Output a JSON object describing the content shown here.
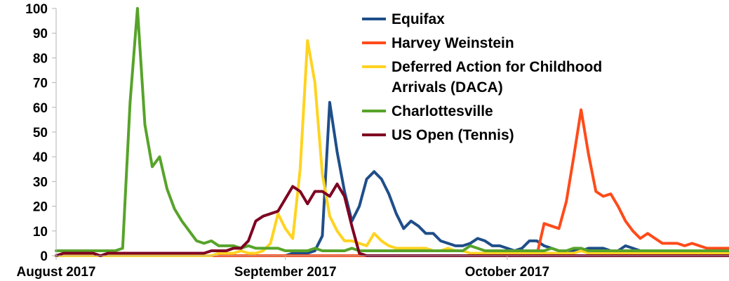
{
  "chart_data": {
    "type": "line",
    "title": "",
    "xlabel": "",
    "ylabel": "",
    "ylim": [
      0,
      100
    ],
    "yticks": [
      0,
      10,
      20,
      30,
      40,
      50,
      60,
      70,
      80,
      90,
      100
    ],
    "x_range": [
      "2017-08-01",
      "2017-10-31"
    ],
    "x_tick_labels": [
      {
        "date": "2017-08-01",
        "label": "August 2017"
      },
      {
        "date": "2017-09-01",
        "label": "September 2017"
      },
      {
        "date": "2017-10-01",
        "label": "October 2017"
      }
    ],
    "grid": false,
    "legend_position": "top-center",
    "series": [
      {
        "name": "Equifax",
        "color": "#1f4e89",
        "points": [
          [
            "2017-08-01",
            0
          ],
          [
            "2017-09-01",
            0
          ],
          [
            "2017-09-02",
            1
          ],
          [
            "2017-09-04",
            1
          ],
          [
            "2017-09-05",
            2
          ],
          [
            "2017-09-06",
            8
          ],
          [
            "2017-09-07",
            62
          ],
          [
            "2017-09-08",
            42
          ],
          [
            "2017-09-09",
            26
          ],
          [
            "2017-09-10",
            14
          ],
          [
            "2017-09-11",
            20
          ],
          [
            "2017-09-12",
            31
          ],
          [
            "2017-09-13",
            34
          ],
          [
            "2017-09-14",
            31
          ],
          [
            "2017-09-15",
            25
          ],
          [
            "2017-09-16",
            17
          ],
          [
            "2017-09-17",
            11
          ],
          [
            "2017-09-18",
            14
          ],
          [
            "2017-09-19",
            12
          ],
          [
            "2017-09-20",
            9
          ],
          [
            "2017-09-21",
            9
          ],
          [
            "2017-09-22",
            6
          ],
          [
            "2017-09-23",
            5
          ],
          [
            "2017-09-24",
            4
          ],
          [
            "2017-09-25",
            4
          ],
          [
            "2017-09-26",
            5
          ],
          [
            "2017-09-27",
            7
          ],
          [
            "2017-09-28",
            6
          ],
          [
            "2017-09-29",
            4
          ],
          [
            "2017-09-30",
            4
          ],
          [
            "2017-10-01",
            3
          ],
          [
            "2017-10-02",
            2
          ],
          [
            "2017-10-03",
            3
          ],
          [
            "2017-10-04",
            6
          ],
          [
            "2017-10-05",
            6
          ],
          [
            "2017-10-06",
            4
          ],
          [
            "2017-10-07",
            3
          ],
          [
            "2017-10-08",
            2
          ],
          [
            "2017-10-09",
            2
          ],
          [
            "2017-10-10",
            2
          ],
          [
            "2017-10-11",
            2
          ],
          [
            "2017-10-12",
            3
          ],
          [
            "2017-10-13",
            3
          ],
          [
            "2017-10-14",
            3
          ],
          [
            "2017-10-15",
            2
          ],
          [
            "2017-10-16",
            2
          ],
          [
            "2017-10-17",
            4
          ],
          [
            "2017-10-18",
            3
          ],
          [
            "2017-10-19",
            2
          ],
          [
            "2017-10-20",
            2
          ],
          [
            "2017-10-31",
            2
          ]
        ]
      },
      {
        "name": "Harvey Weinstein",
        "color": "#ff4b1a",
        "points": [
          [
            "2017-08-01",
            0
          ],
          [
            "2017-10-03",
            0
          ],
          [
            "2017-10-05",
            0
          ],
          [
            "2017-10-06",
            13
          ],
          [
            "2017-10-07",
            12
          ],
          [
            "2017-10-08",
            11
          ],
          [
            "2017-10-09",
            22
          ],
          [
            "2017-10-10",
            40
          ],
          [
            "2017-10-11",
            59
          ],
          [
            "2017-10-12",
            41
          ],
          [
            "2017-10-13",
            26
          ],
          [
            "2017-10-14",
            24
          ],
          [
            "2017-10-15",
            25
          ],
          [
            "2017-10-16",
            20
          ],
          [
            "2017-10-17",
            14
          ],
          [
            "2017-10-18",
            10
          ],
          [
            "2017-10-19",
            7
          ],
          [
            "2017-10-20",
            9
          ],
          [
            "2017-10-21",
            7
          ],
          [
            "2017-10-22",
            5
          ],
          [
            "2017-10-23",
            5
          ],
          [
            "2017-10-24",
            5
          ],
          [
            "2017-10-25",
            4
          ],
          [
            "2017-10-26",
            5
          ],
          [
            "2017-10-27",
            4
          ],
          [
            "2017-10-28",
            3
          ],
          [
            "2017-10-29",
            3
          ],
          [
            "2017-10-30",
            3
          ],
          [
            "2017-10-31",
            3
          ]
        ]
      },
      {
        "name": "Deferred Action for Childhood Arrivals (DACA)",
        "color": "#ffd320",
        "points": [
          [
            "2017-08-01",
            0
          ],
          [
            "2017-08-22",
            0
          ],
          [
            "2017-08-23",
            1
          ],
          [
            "2017-08-25",
            1
          ],
          [
            "2017-08-26",
            2
          ],
          [
            "2017-08-27",
            1
          ],
          [
            "2017-08-28",
            1
          ],
          [
            "2017-08-29",
            2
          ],
          [
            "2017-08-30",
            5
          ],
          [
            "2017-08-31",
            17
          ],
          [
            "2017-09-01",
            11
          ],
          [
            "2017-09-02",
            7
          ],
          [
            "2017-09-03",
            35
          ],
          [
            "2017-09-04",
            87
          ],
          [
            "2017-09-05",
            70
          ],
          [
            "2017-09-06",
            33
          ],
          [
            "2017-09-07",
            16
          ],
          [
            "2017-09-08",
            10
          ],
          [
            "2017-09-09",
            6
          ],
          [
            "2017-09-10",
            6
          ],
          [
            "2017-09-11",
            5
          ],
          [
            "2017-09-12",
            4
          ],
          [
            "2017-09-13",
            9
          ],
          [
            "2017-09-14",
            6
          ],
          [
            "2017-09-15",
            4
          ],
          [
            "2017-09-16",
            3
          ],
          [
            "2017-09-17",
            3
          ],
          [
            "2017-09-18",
            3
          ],
          [
            "2017-09-19",
            3
          ],
          [
            "2017-09-20",
            3
          ],
          [
            "2017-09-21",
            2
          ],
          [
            "2017-09-22",
            2
          ],
          [
            "2017-09-23",
            3
          ],
          [
            "2017-09-24",
            2
          ],
          [
            "2017-09-25",
            2
          ],
          [
            "2017-09-26",
            1
          ],
          [
            "2017-10-09",
            1
          ],
          [
            "2017-10-10",
            1
          ],
          [
            "2017-10-11",
            2
          ],
          [
            "2017-10-12",
            1
          ],
          [
            "2017-10-31",
            1
          ]
        ]
      },
      {
        "name": "Charlottesville",
        "color": "#57a32a",
        "points": [
          [
            "2017-08-01",
            2
          ],
          [
            "2017-08-08",
            2
          ],
          [
            "2017-08-09",
            2
          ],
          [
            "2017-08-10",
            3
          ],
          [
            "2017-08-11",
            62
          ],
          [
            "2017-08-12",
            100
          ],
          [
            "2017-08-13",
            53
          ],
          [
            "2017-08-14",
            36
          ],
          [
            "2017-08-15",
            40
          ],
          [
            "2017-08-16",
            27
          ],
          [
            "2017-08-17",
            19
          ],
          [
            "2017-08-18",
            14
          ],
          [
            "2017-08-19",
            10
          ],
          [
            "2017-08-20",
            6
          ],
          [
            "2017-08-21",
            5
          ],
          [
            "2017-08-22",
            6
          ],
          [
            "2017-08-23",
            4
          ],
          [
            "2017-08-24",
            4
          ],
          [
            "2017-08-25",
            4
          ],
          [
            "2017-08-26",
            3
          ],
          [
            "2017-08-27",
            4
          ],
          [
            "2017-08-28",
            3
          ],
          [
            "2017-08-29",
            3
          ],
          [
            "2017-08-30",
            3
          ],
          [
            "2017-08-31",
            3
          ],
          [
            "2017-09-01",
            2
          ],
          [
            "2017-09-02",
            2
          ],
          [
            "2017-09-03",
            2
          ],
          [
            "2017-09-04",
            2
          ],
          [
            "2017-09-05",
            3
          ],
          [
            "2017-09-06",
            2
          ],
          [
            "2017-09-07",
            2
          ],
          [
            "2017-09-08",
            2
          ],
          [
            "2017-09-09",
            2
          ],
          [
            "2017-09-10",
            3
          ],
          [
            "2017-09-11",
            2
          ],
          [
            "2017-09-12",
            2
          ],
          [
            "2017-09-25",
            2
          ],
          [
            "2017-09-26",
            4
          ],
          [
            "2017-09-27",
            3
          ],
          [
            "2017-09-28",
            2
          ],
          [
            "2017-10-06",
            2
          ],
          [
            "2017-10-07",
            3
          ],
          [
            "2017-10-08",
            2
          ],
          [
            "2017-10-09",
            2
          ],
          [
            "2017-10-10",
            3
          ],
          [
            "2017-10-11",
            3
          ],
          [
            "2017-10-12",
            2
          ],
          [
            "2017-10-31",
            2
          ]
        ]
      },
      {
        "name": "US Open (Tennis)",
        "color": "#7e0021",
        "points": [
          [
            "2017-08-01",
            0
          ],
          [
            "2017-08-02",
            1
          ],
          [
            "2017-08-06",
            1
          ],
          [
            "2017-08-07",
            0
          ],
          [
            "2017-08-08",
            1
          ],
          [
            "2017-08-20",
            1
          ],
          [
            "2017-08-21",
            1
          ],
          [
            "2017-08-22",
            2
          ],
          [
            "2017-08-23",
            2
          ],
          [
            "2017-08-24",
            2
          ],
          [
            "2017-08-25",
            3
          ],
          [
            "2017-08-26",
            3
          ],
          [
            "2017-08-27",
            6
          ],
          [
            "2017-08-28",
            14
          ],
          [
            "2017-08-29",
            16
          ],
          [
            "2017-08-30",
            17
          ],
          [
            "2017-08-31",
            18
          ],
          [
            "2017-09-01",
            23
          ],
          [
            "2017-09-02",
            28
          ],
          [
            "2017-09-03",
            26
          ],
          [
            "2017-09-04",
            21
          ],
          [
            "2017-09-05",
            26
          ],
          [
            "2017-09-06",
            26
          ],
          [
            "2017-09-07",
            24
          ],
          [
            "2017-09-08",
            29
          ],
          [
            "2017-09-09",
            24
          ],
          [
            "2017-09-10",
            12
          ],
          [
            "2017-09-11",
            1
          ],
          [
            "2017-09-12",
            0
          ],
          [
            "2017-10-31",
            0
          ]
        ]
      }
    ]
  }
}
